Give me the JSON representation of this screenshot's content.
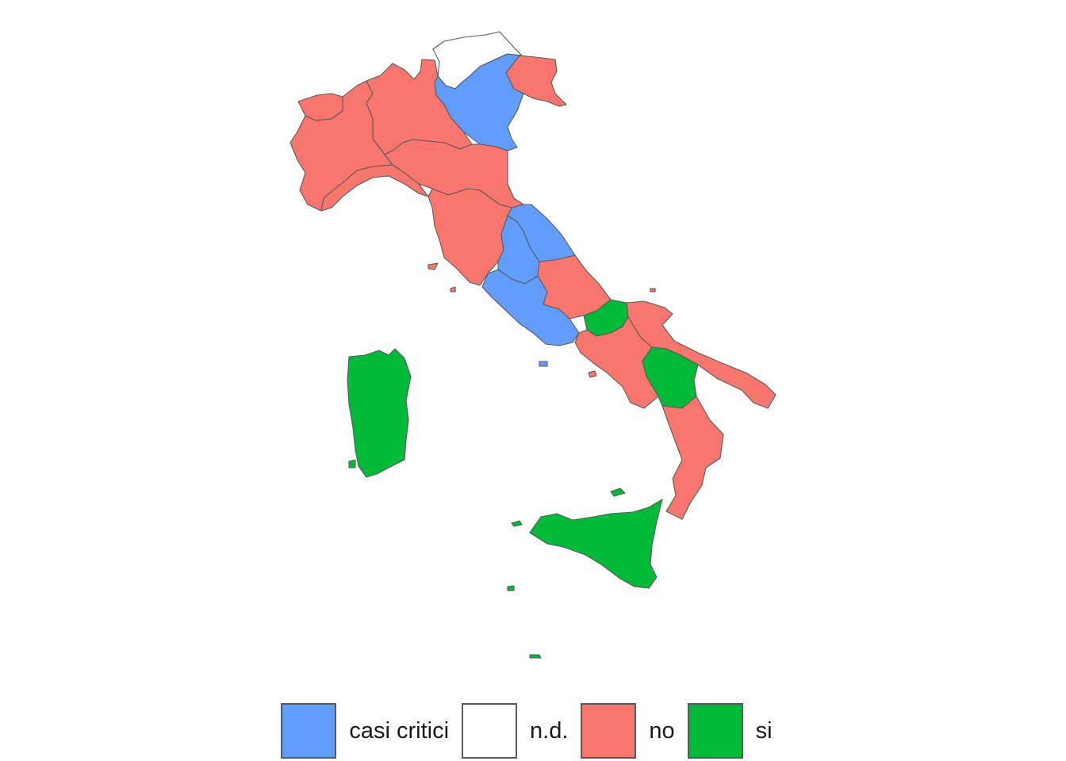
{
  "legend": {
    "items": [
      {
        "key": "casi_critici",
        "label": "casi critici",
        "color": "#619CFF"
      },
      {
        "key": "nd",
        "label": "n.d.",
        "color": "#FFFFFF"
      },
      {
        "key": "no",
        "label": "no",
        "color": "#F8766D"
      },
      {
        "key": "si",
        "label": "si",
        "color": "#00BA38"
      }
    ]
  },
  "regions": [
    {
      "name": "Valle d'Aosta",
      "category": "no"
    },
    {
      "name": "Piemonte",
      "category": "no"
    },
    {
      "name": "Lombardia",
      "category": "no"
    },
    {
      "name": "Trentino-Alto Adige",
      "category": "nd"
    },
    {
      "name": "Veneto",
      "category": "casi_critici"
    },
    {
      "name": "Friuli-Venezia Giulia",
      "category": "no"
    },
    {
      "name": "Liguria",
      "category": "no"
    },
    {
      "name": "Emilia-Romagna",
      "category": "no"
    },
    {
      "name": "Toscana",
      "category": "no"
    },
    {
      "name": "Umbria",
      "category": "casi_critici"
    },
    {
      "name": "Marche",
      "category": "casi_critici"
    },
    {
      "name": "Lazio",
      "category": "casi_critici"
    },
    {
      "name": "Abruzzo",
      "category": "no"
    },
    {
      "name": "Molise",
      "category": "si"
    },
    {
      "name": "Campania",
      "category": "no"
    },
    {
      "name": "Puglia",
      "category": "no"
    },
    {
      "name": "Basilicata",
      "category": "si"
    },
    {
      "name": "Calabria",
      "category": "no"
    },
    {
      "name": "Sicilia",
      "category": "si"
    },
    {
      "name": "Sardegna",
      "category": "si"
    }
  ]
}
